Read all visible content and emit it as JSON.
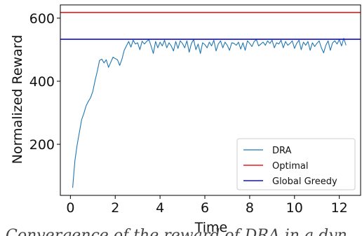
{
  "chart_data": {
    "type": "line",
    "title": "",
    "xlabel": "Time",
    "ylabel": "Normalized Reward",
    "xlim": [
      -0.45,
      12.95
    ],
    "ylim": [
      38,
      642
    ],
    "xticks": [
      0,
      2,
      4,
      6,
      8,
      10,
      12
    ],
    "yticks": [
      200,
      400,
      600
    ],
    "grid": false,
    "legend_position": "lower-right",
    "series": [
      {
        "name": "DRA",
        "color": "#1f77b4",
        "style": "line",
        "x": [
          0.1,
          0.2,
          0.3,
          0.4,
          0.5,
          0.6,
          0.7,
          0.8,
          0.9,
          1.0,
          1.1,
          1.2,
          1.3,
          1.4,
          1.5,
          1.6,
          1.7,
          1.8,
          1.9,
          2.0,
          2.1,
          2.2,
          2.3,
          2.4,
          2.5,
          2.6,
          2.7,
          2.8,
          2.9,
          3.0,
          3.1,
          3.2,
          3.3,
          3.4,
          3.5,
          3.6,
          3.7,
          3.8,
          3.9,
          4.0,
          4.1,
          4.2,
          4.3,
          4.4,
          4.5,
          4.6,
          4.7,
          4.8,
          4.9,
          5.0,
          5.1,
          5.2,
          5.3,
          5.4,
          5.5,
          5.6,
          5.7,
          5.8,
          5.9,
          6.0,
          6.1,
          6.2,
          6.3,
          6.4,
          6.5,
          6.6,
          6.7,
          6.8,
          6.9,
          7.0,
          7.1,
          7.2,
          7.3,
          7.4,
          7.5,
          7.6,
          7.7,
          7.8,
          7.9,
          8.0,
          8.1,
          8.2,
          8.3,
          8.4,
          8.5,
          8.6,
          8.7,
          8.8,
          8.9,
          9.0,
          9.1,
          9.2,
          9.3,
          9.4,
          9.5,
          9.6,
          9.7,
          9.8,
          9.9,
          10.0,
          10.1,
          10.2,
          10.3,
          10.4,
          10.5,
          10.6,
          10.7,
          10.8,
          10.9,
          11.0,
          11.1,
          11.2,
          11.3,
          11.4,
          11.5,
          11.6,
          11.7,
          11.8,
          11.9,
          12.0,
          12.1,
          12.2,
          12.3
        ],
        "y": [
          62,
          148,
          198,
          238,
          278,
          298,
          322,
          336,
          348,
          368,
          402,
          432,
          466,
          470,
          458,
          468,
          444,
          460,
          476,
          472,
          468,
          450,
          470,
          498,
          512,
          526,
          508,
          530,
          518,
          522,
          500,
          527,
          518,
          526,
          532,
          512,
          488,
          526,
          506,
          524,
          512,
          530,
          506,
          522,
          512,
          496,
          526,
          504,
          528,
          520,
          506,
          528,
          492,
          520,
          532,
          500,
          518,
          488,
          522,
          516,
          506,
          524,
          512,
          530,
          496,
          518,
          528,
          506,
          524,
          514,
          498,
          522,
          520,
          514,
          524,
          502,
          522,
          498,
          528,
          520,
          510,
          526,
          532,
          512,
          518,
          524,
          514,
          528,
          520,
          530,
          506,
          522,
          518,
          530,
          506,
          526,
          514,
          520,
          528,
          504,
          520,
          530,
          500,
          524,
          514,
          526,
          498,
          522,
          510,
          520,
          528,
          506,
          490,
          514,
          528,
          498,
          522,
          528,
          518,
          532,
          512,
          536,
          514
        ]
      },
      {
        "name": "Optimal",
        "color": "#ee1c1c",
        "style": "hline",
        "y": 618
      },
      {
        "name": "Global Greedy",
        "color": "#1010cc",
        "style": "hline",
        "y": 533
      }
    ]
  },
  "caption_text": "Convergence of the reward of DRA in a dyn"
}
